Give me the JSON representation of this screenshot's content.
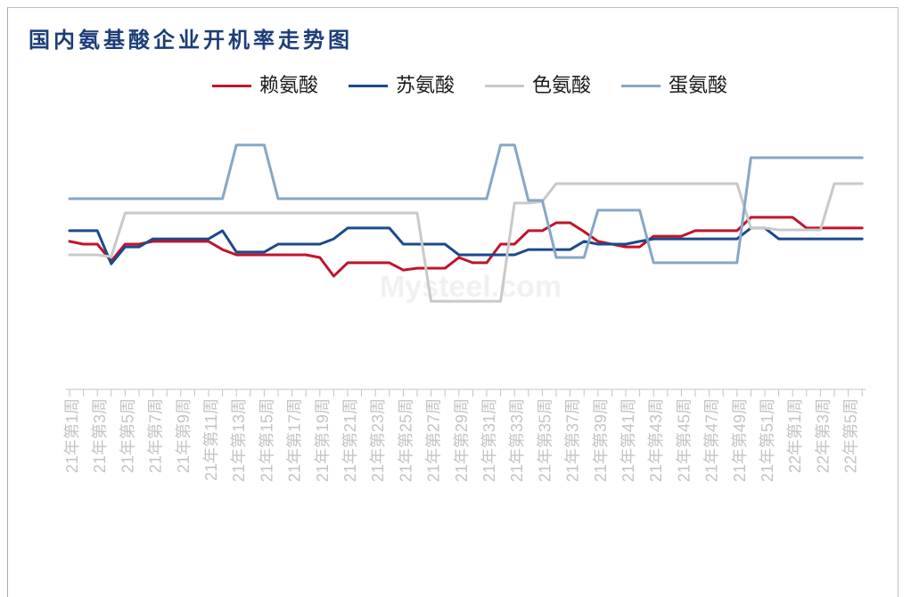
{
  "watermark": "Mysteel.com",
  "chart_data": {
    "type": "line",
    "title": "国内氨基酸企业开机率走势图",
    "xlabel": "",
    "ylabel": "",
    "ylim": [
      0,
      100
    ],
    "grid": false,
    "legend_position": "top-center",
    "x_tick_labels": [
      "21年第1周",
      "21年第3周",
      "21年第5周",
      "21年第7周",
      "21年第9周",
      "21年第11周",
      "21年第13周",
      "21年第15周",
      "21年第17周",
      "21年第19周",
      "21年第21周",
      "21年第23周",
      "21年第25周",
      "21年第27周",
      "21年第29周",
      "21年第31周",
      "21年第33周",
      "21年第35周",
      "21年第37周",
      "21年第39周",
      "21年第41周",
      "21年第43周",
      "21年第45周",
      "21年第47周",
      "21年第49周",
      "21年第51周",
      "22年第1周",
      "22年第3周",
      "22年第5周"
    ],
    "series": [
      {
        "name": "赖氨酸",
        "color": "#c0142b",
        "values": [
          54.1,
          53.1,
          53.1,
          46.9,
          53.1,
          53.1,
          54.1,
          54.1,
          54.1,
          54.1,
          54.1,
          51.1,
          49.2,
          49.2,
          49.2,
          49.2,
          49.2,
          49.2,
          48.2,
          41.4,
          46.3,
          46.3,
          46.3,
          46.3,
          43.6,
          44.3,
          44.3,
          44.3,
          48.2,
          46.3,
          46.3,
          53.1,
          53.1,
          58.0,
          58.0,
          60.9,
          60.9,
          57.7,
          54.1,
          53.1,
          52.1,
          52.1,
          56.0,
          56.0,
          56.0,
          58.0,
          58.0,
          58.0,
          58.0,
          62.9,
          62.9,
          62.9,
          62.9,
          59.0,
          59.0,
          59.0,
          59.0,
          59.0
        ]
      },
      {
        "name": "苏氨酸",
        "color": "#1b4a8c",
        "values": [
          58.0,
          58.0,
          58.0,
          45.9,
          52.1,
          52.1,
          55.0,
          55.0,
          55.0,
          55.0,
          55.0,
          58.0,
          50.2,
          50.2,
          50.2,
          53.1,
          53.1,
          53.1,
          53.1,
          55.0,
          59.0,
          59.0,
          59.0,
          59.0,
          53.1,
          53.1,
          53.1,
          53.1,
          49.2,
          49.2,
          49.2,
          49.2,
          49.2,
          51.1,
          51.1,
          51.1,
          51.1,
          54.1,
          53.1,
          53.1,
          53.1,
          54.1,
          55.0,
          55.0,
          55.0,
          55.0,
          55.0,
          55.0,
          55.0,
          59.0,
          59.0,
          55.0,
          55.0,
          55.0,
          55.0,
          55.0,
          55.0,
          55.0
        ]
      },
      {
        "name": "色氨酸",
        "color": "#c9c9c9",
        "values": [
          49.2,
          49.2,
          49.2,
          48.5,
          64.5,
          64.5,
          64.5,
          64.5,
          64.5,
          64.5,
          64.5,
          64.5,
          64.5,
          64.5,
          64.5,
          64.5,
          64.5,
          64.5,
          64.5,
          64.5,
          64.5,
          64.5,
          64.5,
          64.5,
          64.5,
          64.5,
          32.2,
          32.2,
          32.2,
          32.2,
          32.2,
          32.2,
          68.1,
          68.1,
          68.7,
          75.2,
          75.2,
          75.2,
          75.2,
          75.2,
          75.2,
          75.2,
          75.2,
          75.2,
          75.2,
          75.2,
          75.2,
          75.2,
          75.2,
          59.0,
          59.0,
          58.3,
          58.3,
          58.3,
          58.3,
          75.2,
          75.2,
          75.2
        ]
      },
      {
        "name": "蛋氨酸",
        "color": "#86a7c7",
        "values": [
          69.7,
          69.7,
          69.7,
          69.7,
          69.7,
          69.7,
          69.7,
          69.7,
          69.7,
          69.7,
          69.7,
          69.7,
          89.3,
          89.3,
          89.3,
          69.7,
          69.7,
          69.7,
          69.7,
          69.7,
          69.7,
          69.7,
          69.7,
          69.7,
          69.7,
          69.7,
          69.7,
          69.7,
          69.7,
          69.7,
          69.7,
          89.3,
          89.3,
          69.1,
          69.1,
          48.2,
          48.2,
          48.2,
          65.5,
          65.5,
          65.5,
          65.5,
          46.3,
          46.3,
          46.3,
          46.3,
          46.3,
          46.3,
          46.3,
          84.7,
          84.7,
          84.7,
          84.7,
          84.7,
          84.7,
          84.7,
          84.7,
          84.7
        ]
      }
    ]
  }
}
